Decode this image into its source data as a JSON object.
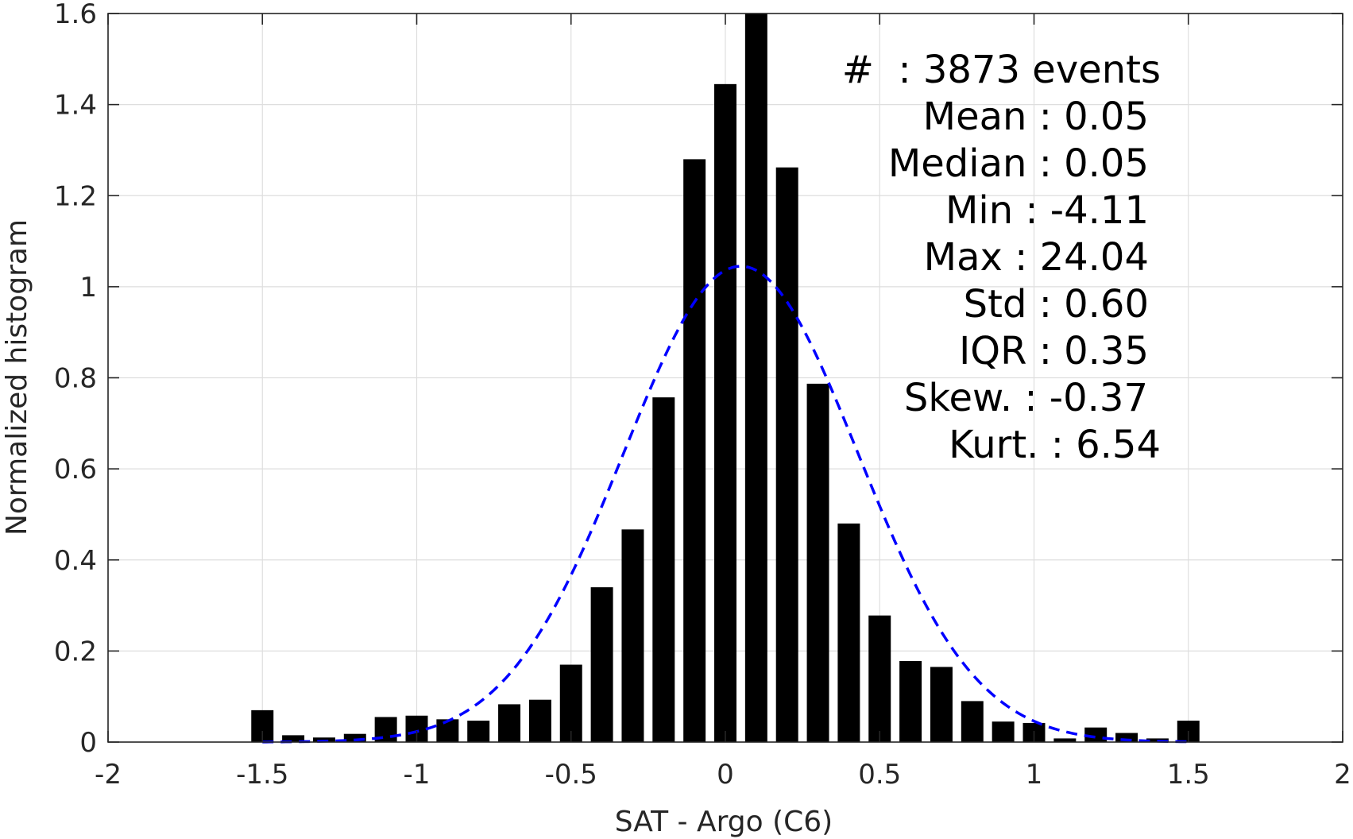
{
  "chart_data": {
    "type": "bar",
    "title": "",
    "xlabel": "SAT - Argo (C6)",
    "ylabel": "Normalized histogram",
    "xlim": [
      -2,
      2
    ],
    "ylim": [
      0,
      1.6
    ],
    "xticks": [
      -2,
      -1.5,
      -1,
      -0.5,
      0,
      0.5,
      1,
      1.5,
      2
    ],
    "xtick_labels": [
      "-2",
      "-1.5",
      "-1",
      "-0.5",
      "0",
      "0.5",
      "1",
      "1.5",
      "2"
    ],
    "yticks": [
      0,
      0.2,
      0.4,
      0.6,
      0.8,
      1,
      1.2,
      1.4,
      1.6
    ],
    "ytick_labels": [
      "0",
      "0.2",
      "0.4",
      "0.6",
      "0.8",
      "1",
      "1.2",
      "1.4",
      "1.6"
    ],
    "grid": true,
    "bar_color": "#000000",
    "bins": [
      -1.5,
      -1.4,
      -1.3,
      -1.2,
      -1.1,
      -1.0,
      -0.9,
      -0.8,
      -0.7,
      -0.6,
      -0.5,
      -0.4,
      -0.3,
      -0.2,
      -0.1,
      0.0,
      0.1,
      0.2,
      0.3,
      0.4,
      0.5,
      0.6,
      0.7,
      0.8,
      0.9,
      1.0,
      1.1,
      1.2,
      1.3,
      1.4,
      1.5
    ],
    "values": [
      0.07,
      0.015,
      0.01,
      0.018,
      0.055,
      0.058,
      0.05,
      0.047,
      0.083,
      0.093,
      0.17,
      0.34,
      0.467,
      0.757,
      1.28,
      1.445,
      1.6,
      1.262,
      0.787,
      0.48,
      0.278,
      0.178,
      0.165,
      0.09,
      0.045,
      0.042,
      0.008,
      0.032,
      0.02,
      0.008,
      0.047
    ],
    "fit_curve": {
      "type": "normal",
      "mean": 0.05,
      "std": 0.38,
      "peak": 1.045,
      "x_range": [
        -1.5,
        1.5
      ],
      "color": "#0000ff",
      "style": "dashed"
    },
    "stats": [
      {
        "label": "#  : 3873 events",
        "anchor": "end",
        "col": "outer"
      },
      {
        "label": "Mean : 0.05",
        "anchor": "end",
        "col": "inner"
      },
      {
        "label": "Median : 0.05",
        "anchor": "end",
        "col": "inner"
      },
      {
        "label": "Min : -4.11",
        "anchor": "end",
        "col": "inner"
      },
      {
        "label": "Max : 24.04",
        "anchor": "end",
        "col": "inner"
      },
      {
        "label": "Std : 0.60",
        "anchor": "end",
        "col": "inner"
      },
      {
        "label": "IQR : 0.35",
        "anchor": "end",
        "col": "inner"
      },
      {
        "label": "Skew. : -0.37",
        "anchor": "end",
        "col": "mid"
      },
      {
        "label": "Kurt. : 6.54",
        "anchor": "end",
        "col": "outer"
      }
    ]
  }
}
